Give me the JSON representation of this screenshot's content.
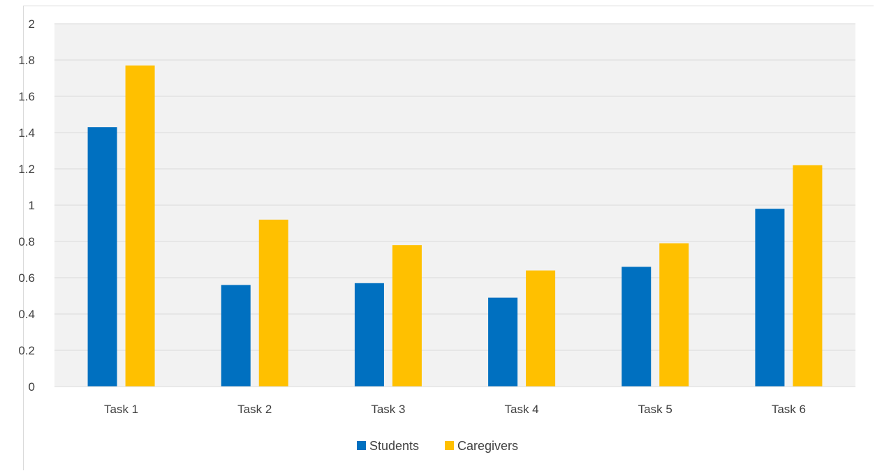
{
  "chart_data": {
    "type": "bar",
    "title": "",
    "xlabel": "",
    "ylabel": "",
    "categories": [
      "Task 1",
      "Task 2",
      "Task 3",
      "Task 4",
      "Task 5",
      "Task 6"
    ],
    "series": [
      {
        "name": "Students",
        "values": [
          1.43,
          0.56,
          0.57,
          0.49,
          0.66,
          0.98
        ],
        "color": "#0070C0"
      },
      {
        "name": "Caregivers",
        "values": [
          1.77,
          0.92,
          0.78,
          0.64,
          0.79,
          1.22
        ],
        "color": "#FFC000"
      }
    ],
    "ylim": [
      0,
      2
    ],
    "yticks": [
      "0",
      "0.2",
      "0.4",
      "0.6",
      "0.8",
      "1",
      "1.2",
      "1.4",
      "1.6",
      "1.8",
      "2"
    ],
    "grid": true,
    "plot_background": "#F2F2F2",
    "gridline_color": "#D9D9D9",
    "legend_position": "bottom"
  }
}
